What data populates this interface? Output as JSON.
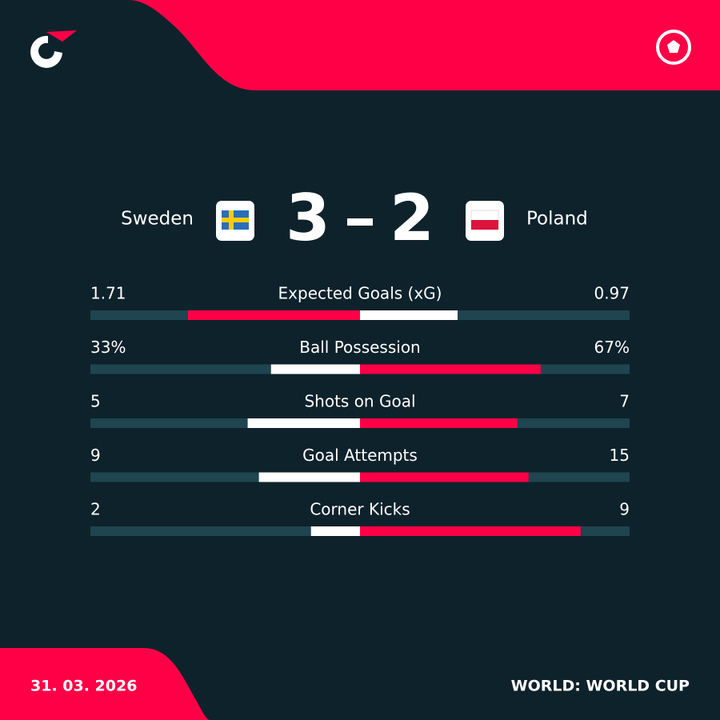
{
  "match": {
    "home": "Sweden",
    "away": "Poland",
    "home_score": 3,
    "away_score": 2
  },
  "stats": [
    {
      "label": "Expected Goals (xG)",
      "home": 1.71,
      "away": 0.97
    },
    {
      "label": "Ball Possession",
      "home": {
        "value": 33,
        "label": "33%"
      },
      "away": {
        "value": 67,
        "label": "67%"
      }
    },
    {
      "label": "Shots on Goal",
      "home": 5,
      "away": 7
    },
    {
      "label": "Goal Attempts",
      "home": 9,
      "away": 15
    },
    {
      "label": "Corner Kicks",
      "home": 2,
      "away": 9
    }
  ],
  "footer": {
    "date": "31. 03. 2026",
    "competition": "WORLD: WORLD CUP"
  }
}
